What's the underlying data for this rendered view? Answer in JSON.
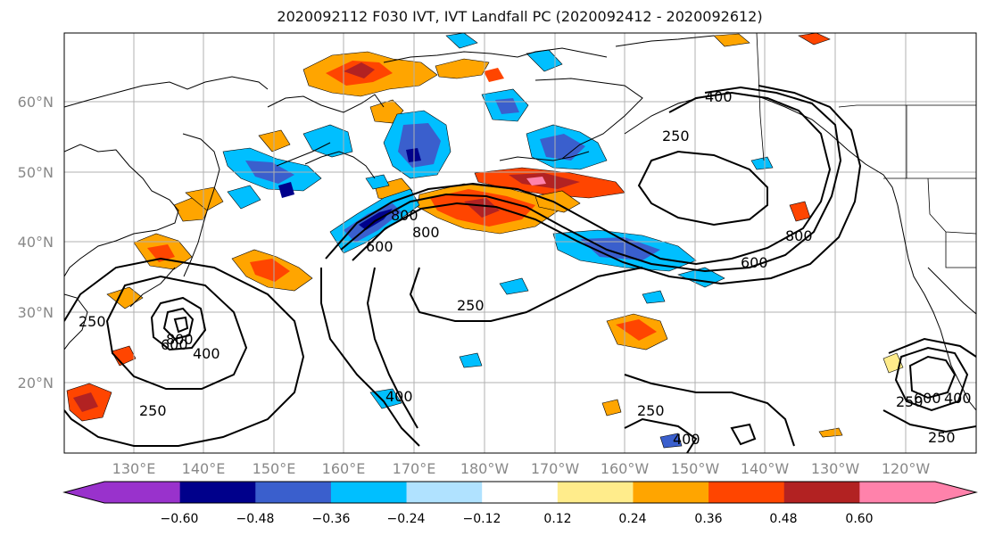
{
  "title": "2020092112 F030 IVT, IVT Landfall PC (2020092412 - 2020092612)",
  "map": {
    "lon_labels": [
      "130°E",
      "140°E",
      "150°E",
      "160°E",
      "170°E",
      "180°W",
      "170°W",
      "160°W",
      "150°W",
      "140°W",
      "130°W",
      "120°W"
    ],
    "lat_labels": [
      "20°N",
      "30°N",
      "40°N",
      "50°N",
      "60°N"
    ],
    "contour_labels": [
      "250",
      "400",
      "600",
      "800"
    ],
    "label_color": "#888888"
  },
  "colorbar": {
    "ticks": [
      "−0.60",
      "−0.48",
      "−0.36",
      "−0.24",
      "−0.12",
      "0.12",
      "0.24",
      "0.36",
      "0.48",
      "0.60"
    ],
    "colors": [
      "#9932CC",
      "#00008B",
      "#3A5FCD",
      "#00BFFF",
      "#B0E2FF",
      "#FFFFFF",
      "#FFEC8B",
      "#FFA500",
      "#FF4500",
      "#B22222",
      "#FF82AB"
    ]
  }
}
